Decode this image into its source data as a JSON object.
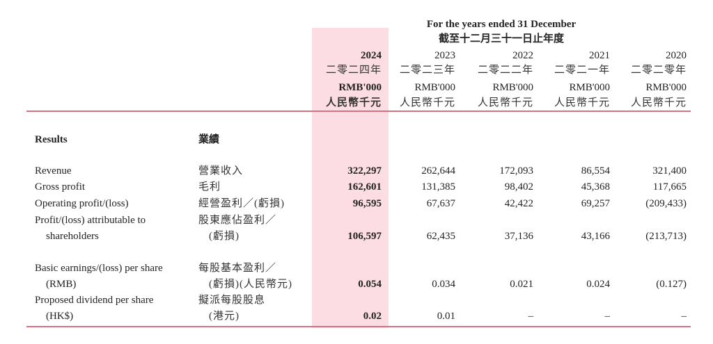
{
  "header": {
    "title_en": "For the years ended 31 December",
    "title_zh": "截至十二月三十一日止年度",
    "columns": [
      {
        "year": "2024",
        "year_zh": "二零二四年",
        "unit": "RMB'000",
        "unit_zh": "人民幣千元",
        "highlight": true
      },
      {
        "year": "2023",
        "year_zh": "二零二三年",
        "unit": "RMB'000",
        "unit_zh": "人民幣千元"
      },
      {
        "year": "2022",
        "year_zh": "二零二二年",
        "unit": "RMB'000",
        "unit_zh": "人民幣千元"
      },
      {
        "year": "2021",
        "year_zh": "二零二一年",
        "unit": "RMB'000",
        "unit_zh": "人民幣千元"
      },
      {
        "year": "2020",
        "year_zh": "二零二零年",
        "unit": "RMB'000",
        "unit_zh": "人民幣千元"
      }
    ]
  },
  "section": {
    "label_en": "Results",
    "label_zh": "業績"
  },
  "rows": [
    {
      "en": [
        "Revenue"
      ],
      "zh": [
        "營業收入"
      ],
      "values": [
        "322,297",
        "262,644",
        "172,093",
        "86,554",
        "321,400"
      ]
    },
    {
      "en": [
        "Gross profit"
      ],
      "zh": [
        "毛利"
      ],
      "values": [
        "162,601",
        "131,385",
        "98,402",
        "45,368",
        "117,665"
      ]
    },
    {
      "en": [
        "Operating profit/(loss)"
      ],
      "zh": [
        "經營盈利／(虧損)"
      ],
      "values": [
        "96,595",
        "67,637",
        "42,422",
        "69,257",
        "(209,433)"
      ]
    },
    {
      "en": [
        "Profit/(loss) attributable to",
        "shareholders"
      ],
      "zh": [
        "股東應佔盈利／",
        "(虧損)"
      ],
      "values": [
        "106,597",
        "62,435",
        "37,136",
        "43,166",
        "(213,713)"
      ]
    },
    {
      "en": [
        "Basic earnings/(loss) per share",
        "(RMB)"
      ],
      "zh": [
        "每股基本盈利／",
        "(虧損)(人民幣元)"
      ],
      "values": [
        "0.054",
        "0.034",
        "0.021",
        "0.024",
        "(0.127)"
      ]
    },
    {
      "en": [
        "Proposed dividend per share",
        "(HK$)"
      ],
      "zh": [
        "擬派每股股息",
        "(港元)"
      ],
      "values": [
        "0.02",
        "0.01",
        "–",
        "–",
        "–"
      ]
    }
  ],
  "colors": {
    "highlight": "#fbdde3",
    "rule": "#d9707f"
  }
}
